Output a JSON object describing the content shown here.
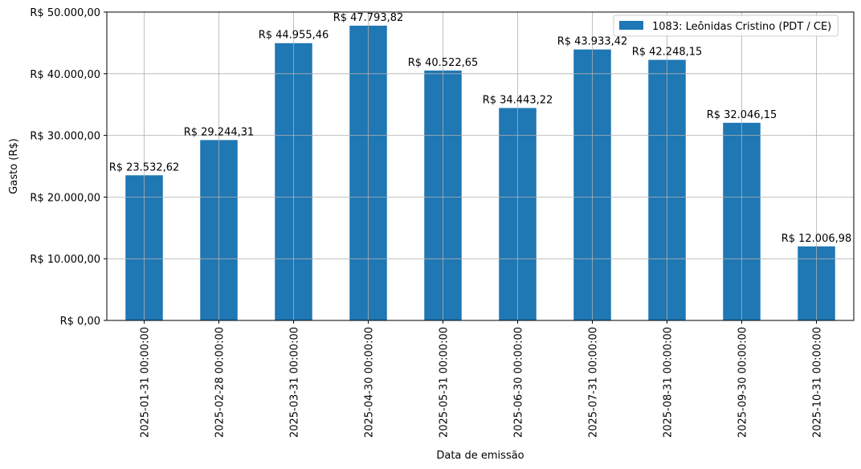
{
  "chart_data": {
    "type": "bar",
    "categories": [
      "2025-01-31 00:00:00",
      "2025-02-28 00:00:00",
      "2025-03-31 00:00:00",
      "2025-04-30 00:00:00",
      "2025-05-31 00:00:00",
      "2025-06-30 00:00:00",
      "2025-07-31 00:00:00",
      "2025-08-31 00:00:00",
      "2025-09-30 00:00:00",
      "2025-10-31 00:00:00"
    ],
    "series": [
      {
        "name": "1083: Leônidas Cristino (PDT / CE)",
        "color": "#1f77b4",
        "values": [
          23532.62,
          29244.31,
          44955.46,
          47793.82,
          40522.65,
          34443.22,
          43933.42,
          42248.15,
          32046.15,
          12006.98
        ],
        "data_labels": [
          "R$ 23.532,62",
          "R$ 29.244,31",
          "R$ 44.955,46",
          "R$ 47.793,82",
          "R$ 40.522,65",
          "R$ 34.443,22",
          "R$ 43.933,42",
          "R$ 42.248,15",
          "R$ 32.046,15",
          "R$ 12.006,98"
        ]
      }
    ],
    "xlabel": "Data de emissão",
    "ylabel": "Gasto (R$)",
    "ylim": [
      0,
      50000
    ],
    "yticks": [
      0,
      10000,
      20000,
      30000,
      40000,
      50000
    ],
    "ytick_labels": [
      "R$ 0,00",
      "R$ 10.000,00",
      "R$ 20.000,00",
      "R$ 30.000,00",
      "R$ 40.000,00",
      "R$ 50.000,00"
    ],
    "grid": true,
    "legend_position": "top-right"
  }
}
